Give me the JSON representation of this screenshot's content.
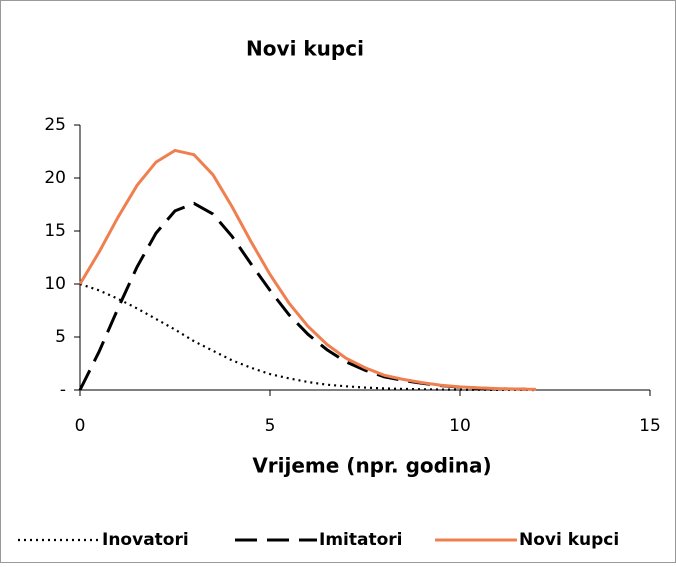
{
  "chart_data": {
    "type": "line",
    "title": "Novi kupci",
    "x_label": "Vrijeme (npr. godina)",
    "x": [
      0,
      0.5,
      1,
      1.5,
      2,
      2.5,
      3,
      3.5,
      4,
      4.5,
      5,
      5.5,
      6,
      6.5,
      7,
      7.5,
      8,
      8.5,
      9,
      9.5,
      10,
      10.5,
      11,
      11.5,
      12
    ],
    "series": [
      {
        "name": "Inovatori",
        "color": "#000000",
        "dash": "dotted",
        "values": [
          10,
          9.4,
          8.6,
          7.7,
          6.7,
          5.7,
          4.6,
          3.7,
          2.8,
          2.1,
          1.5,
          1.1,
          0.75,
          0.5,
          0.35,
          0.23,
          0.15,
          0.1,
          0.07,
          0.04,
          0.03,
          0.02,
          0.01,
          0.01,
          0
        ]
      },
      {
        "name": "Imitatori",
        "color": "#000000",
        "dash": "dashed",
        "values": [
          0,
          3.6,
          7.7,
          11.6,
          14.8,
          16.9,
          17.6,
          16.6,
          14.5,
          11.9,
          9.4,
          7.1,
          5.25,
          3.8,
          2.65,
          1.87,
          1.25,
          0.9,
          0.63,
          0.41,
          0.27,
          0.18,
          0.12,
          0.08,
          0.06
        ]
      },
      {
        "name": "Novi kupci",
        "color": "#f07f50",
        "dash": "solid",
        "values": [
          10,
          13,
          16.3,
          19.3,
          21.5,
          22.6,
          22.2,
          20.3,
          17.3,
          14,
          10.9,
          8.2,
          6,
          4.3,
          3,
          2.1,
          1.4,
          1,
          0.7,
          0.45,
          0.3,
          0.2,
          0.13,
          0.09,
          0.06
        ]
      }
    ],
    "xlim": [
      0,
      15
    ],
    "xticks": [
      0,
      5,
      10,
      15
    ],
    "ylim": [
      0,
      25
    ],
    "yticks": [
      {
        "value": 0,
        "label": "-"
      },
      5,
      10,
      15,
      20,
      25
    ],
    "grid": false,
    "legend": "bottom"
  }
}
